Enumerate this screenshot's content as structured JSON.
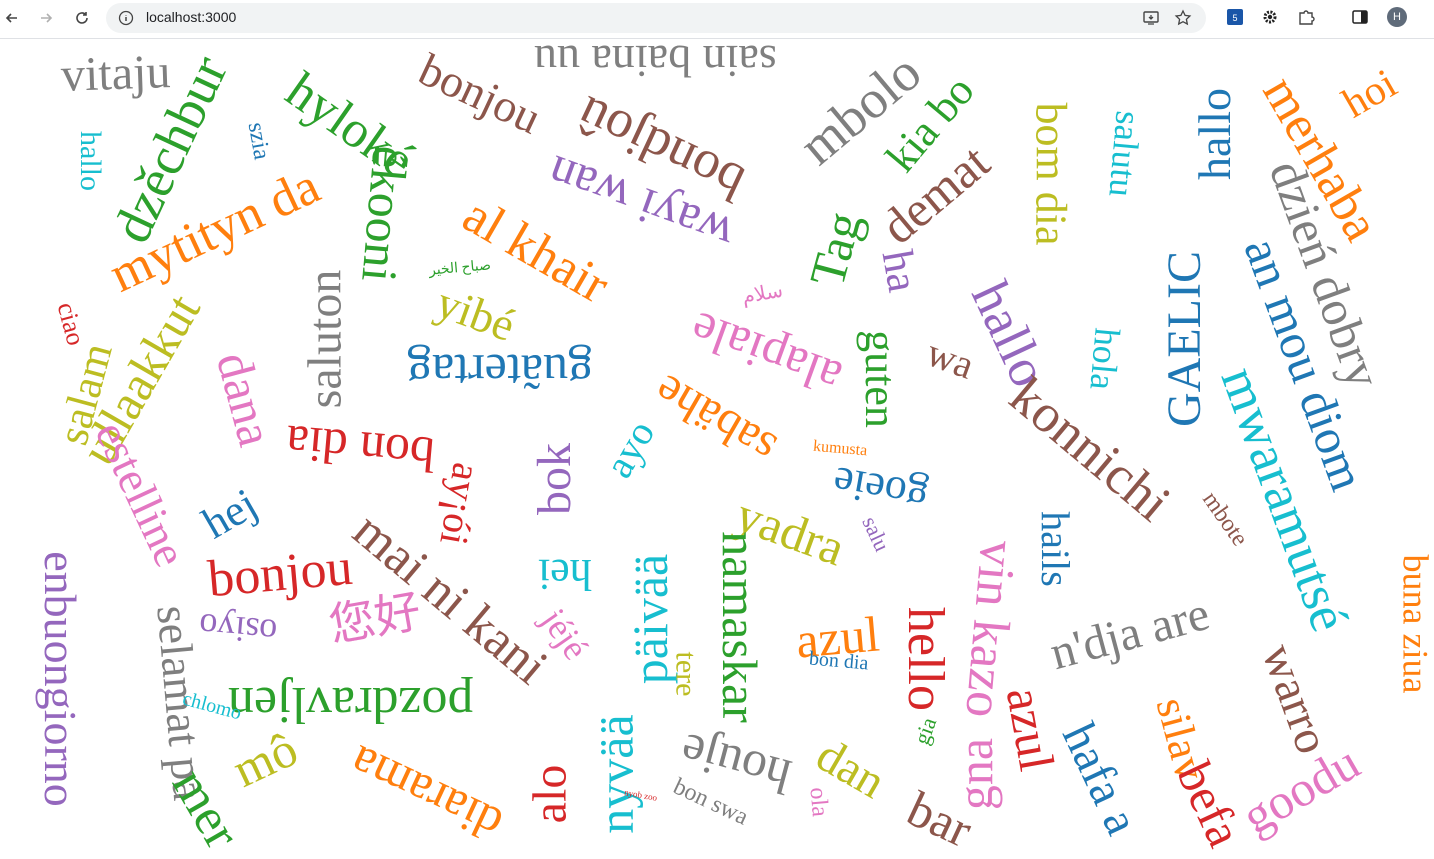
{
  "browser": {
    "url": "localhost:3000",
    "avatar_letter": "H",
    "icons": [
      "back-arrow-icon",
      "forward-arrow-icon",
      "reload-icon",
      "site-info-icon",
      "install-app-icon",
      "bookmark-star-icon",
      "extension-translate-icon",
      "extension-gear-icon",
      "extensions-puzzle-icon",
      "side-panel-icon"
    ]
  },
  "palette": {
    "blue": "#1f77b4",
    "orange": "#ff7f0e",
    "green": "#2ca02c",
    "red": "#d62728",
    "purple": "#9467bd",
    "brown": "#8c564b",
    "pink": "#e377c2",
    "gray": "#7f7f7f",
    "olive": "#bcbd22",
    "cyan": "#17becf"
  },
  "words": [
    {
      "text": "vitaju",
      "color": "gray"
    },
    {
      "text": "hallo",
      "color": "cyan"
    },
    {
      "text": "dzěchbur",
      "color": "green"
    },
    {
      "text": "szia",
      "color": "blue"
    },
    {
      "text": "hyloké",
      "color": "green"
    },
    {
      "text": "bonjou",
      "color": "brown"
    },
    {
      "text": "sain baina uu",
      "color": "gray"
    },
    {
      "text": "mbolo",
      "color": "gray"
    },
    {
      "text": "kia bo",
      "color": "green"
    },
    {
      "text": "bom dia",
      "color": "olive"
    },
    {
      "text": "salutu",
      "color": "cyan"
    },
    {
      "text": "hallo",
      "color": "blue"
    },
    {
      "text": "merhaba",
      "color": "orange"
    },
    {
      "text": "hoi",
      "color": "orange"
    },
    {
      "text": "mytityn da",
      "color": "orange"
    },
    {
      "text": "ékooni",
      "color": "green"
    },
    {
      "text": "bondjoû",
      "color": "brown"
    },
    {
      "text": "al khair",
      "color": "orange"
    },
    {
      "text": "wayi wan",
      "color": "purple"
    },
    {
      "text": "Tag",
      "color": "green"
    },
    {
      "text": "demat",
      "color": "brown"
    },
    {
      "text": "ha",
      "color": "purple"
    },
    {
      "text": "dzień dobry",
      "color": "gray"
    },
    {
      "text": "GAELIC",
      "color": "blue"
    },
    {
      "text": "an mou diom",
      "color": "blue"
    },
    {
      "text": "ciao",
      "color": "red"
    },
    {
      "text": "ullaakkut",
      "color": "olive"
    },
    {
      "text": "صباح الخير",
      "color": "green"
    },
    {
      "text": "yibé",
      "color": "olive"
    },
    {
      "text": "سلام",
      "color": "pink"
    },
    {
      "text": "alapiale",
      "color": "pink"
    },
    {
      "text": "guten",
      "color": "green"
    },
    {
      "text": "hallo",
      "color": "purple"
    },
    {
      "text": "wa",
      "color": "brown"
    },
    {
      "text": "hola",
      "color": "cyan"
    },
    {
      "text": "salam",
      "color": "olive"
    },
    {
      "text": "dana",
      "color": "pink"
    },
    {
      "text": "saluton",
      "color": "gray"
    },
    {
      "text": "guãtertag",
      "color": "blue"
    },
    {
      "text": "sabähe",
      "color": "orange"
    },
    {
      "text": "konnichi",
      "color": "brown"
    },
    {
      "text": "mwaramutsé",
      "color": "cyan"
    },
    {
      "text": "estelline",
      "color": "pink"
    },
    {
      "text": "bon dia",
      "color": "red"
    },
    {
      "text": "ayo",
      "color": "cyan"
    },
    {
      "text": "kumusta",
      "color": "orange"
    },
    {
      "text": "goeie",
      "color": "blue"
    },
    {
      "text": "mbote",
      "color": "brown"
    },
    {
      "text": "hej",
      "color": "blue"
    },
    {
      "text": "ay¡ói",
      "color": "red"
    },
    {
      "text": "bok",
      "color": "purple"
    },
    {
      "text": "mai ni kani",
      "color": "brown"
    },
    {
      "text": "yadra",
      "color": "olive"
    },
    {
      "text": "salu",
      "color": "purple"
    },
    {
      "text": "hails",
      "color": "blue"
    },
    {
      "text": "enbuongiorno",
      "color": "purple"
    },
    {
      "text": "bonjou",
      "color": "red"
    },
    {
      "text": "hei",
      "color": "cyan"
    },
    {
      "text": "päivää",
      "color": "cyan"
    },
    {
      "text": "namaskar",
      "color": "green"
    },
    {
      "text": "hello",
      "color": "red"
    },
    {
      "text": "vin kazo",
      "color": "pink"
    },
    {
      "text": "n'dja are",
      "color": "gray"
    },
    {
      "text": "warro",
      "color": "brown"
    },
    {
      "text": "buna ziua",
      "color": "orange"
    },
    {
      "text": "selamat pa",
      "color": "gray"
    },
    {
      "text": "osiyo",
      "color": "purple"
    },
    {
      "text": "您好",
      "color": "pink"
    },
    {
      "text": "jéjé",
      "color": "pink"
    },
    {
      "text": "azul",
      "color": "orange"
    },
    {
      "text": "gna",
      "color": "pink"
    },
    {
      "text": "azul",
      "color": "red"
    },
    {
      "text": "pozdravljen",
      "color": "green"
    },
    {
      "text": "chlomo",
      "color": "cyan"
    },
    {
      "text": "tere",
      "color": "olive"
    },
    {
      "text": "bon dia",
      "color": "blue"
    },
    {
      "text": "houje",
      "color": "gray"
    },
    {
      "text": "dan",
      "color": "olive"
    },
    {
      "text": "gia",
      "color": "green"
    },
    {
      "text": "hafa a",
      "color": "blue"
    },
    {
      "text": "silav",
      "color": "orange"
    },
    {
      "text": "mô",
      "color": "olive"
    },
    {
      "text": "diarama",
      "color": "orange"
    },
    {
      "text": "alo",
      "color": "red"
    },
    {
      "text": "nyvää",
      "color": "cyan"
    },
    {
      "text": "bon swa",
      "color": "gray"
    },
    {
      "text": "nyob zoo",
      "color": "red"
    },
    {
      "text": "ola",
      "color": "pink"
    },
    {
      "text": "bar",
      "color": "brown"
    },
    {
      "text": "mer",
      "color": "green"
    },
    {
      "text": "befa",
      "color": "red"
    },
    {
      "text": "goodu",
      "color": "pink"
    }
  ]
}
